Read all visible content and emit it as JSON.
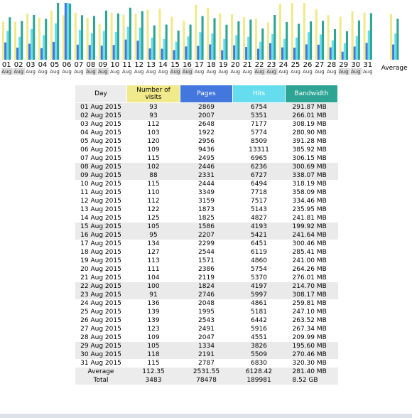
{
  "chart_data": {
    "type": "bar",
    "categories": [
      "01",
      "02",
      "03",
      "04",
      "05",
      "06",
      "07",
      "08",
      "09",
      "10",
      "11",
      "12",
      "13",
      "14",
      "15",
      "16",
      "17",
      "18",
      "19",
      "20",
      "21",
      "22",
      "23",
      "24",
      "25",
      "26",
      "27",
      "28",
      "29",
      "30",
      "31"
    ],
    "category_sublabel": "Aug",
    "weekend_days": [
      "01",
      "02",
      "08",
      "09",
      "15",
      "16",
      "22",
      "23",
      "29",
      "30"
    ],
    "average_label": "Average",
    "series": [
      {
        "name": "Number of visits",
        "values": [
          93,
          93,
          112,
          103,
          120,
          109,
          115,
          102,
          88,
          115,
          110,
          112,
          122,
          125,
          105,
          95,
          134,
          127,
          113,
          111,
          104,
          100,
          91,
          136,
          139,
          139,
          123,
          109,
          105,
          118,
          115
        ],
        "average": 112.35,
        "color": "#f0ea8c"
      },
      {
        "name": "Pages",
        "values": [
          2869,
          2007,
          2648,
          1922,
          2956,
          9436,
          2495,
          2446,
          2331,
          2444,
          3349,
          3159,
          1873,
          1825,
          1586,
          2207,
          2299,
          2544,
          1571,
          2386,
          2119,
          1824,
          2746,
          2048,
          1995,
          2543,
          2491,
          2047,
          1334,
          2191,
          2787
        ],
        "average": 2531.55,
        "color": "#4477dd"
      },
      {
        "name": "Hits",
        "values": [
          6754,
          5351,
          7177,
          5774,
          8509,
          13311,
          6965,
          6236,
          6727,
          6494,
          7718,
          7517,
          5143,
          4827,
          4193,
          5421,
          6451,
          6119,
          4860,
          5754,
          5370,
          4197,
          5997,
          4861,
          5181,
          6442,
          5916,
          4551,
          3826,
          5509,
          6830
        ],
        "average": 6128.42,
        "color": "#66ddee"
      },
      {
        "name": "Bandwidth",
        "values": [
          291.87,
          266.01,
          308.19,
          280.9,
          391.28,
          385.92,
          306.15,
          300.69,
          338.07,
          318.19,
          358.09,
          334.46,
          235.95,
          241.81,
          199.92,
          241.64,
          300.46,
          285.41,
          241.0,
          264.26,
          276.01,
          214.7,
          308.17,
          259.81,
          247.1,
          263.52,
          267.34,
          209.99,
          195.6,
          270.46,
          320.3
        ],
        "average": 281.4,
        "color": "#2ea495"
      }
    ]
  },
  "table": {
    "headers": {
      "day": "Day",
      "visits": "Number of visits",
      "pages": "Pages",
      "hits": "Hits",
      "bandwidth": "Bandwidth"
    },
    "header_colors": {
      "day": "#ececec",
      "visits": "#f0ea8c",
      "pages": "#4477dd",
      "hits": "#66ddee",
      "bandwidth": "#2ea495"
    },
    "rows": [
      {
        "day": "01 Aug 2015",
        "visits": "93",
        "pages": "2869",
        "hits": "6754",
        "bandwidth": "291.87 MB",
        "weekend": true
      },
      {
        "day": "02 Aug 2015",
        "visits": "93",
        "pages": "2007",
        "hits": "5351",
        "bandwidth": "266.01 MB",
        "weekend": true
      },
      {
        "day": "03 Aug 2015",
        "visits": "112",
        "pages": "2648",
        "hits": "7177",
        "bandwidth": "308.19 MB",
        "weekend": false
      },
      {
        "day": "04 Aug 2015",
        "visits": "103",
        "pages": "1922",
        "hits": "5774",
        "bandwidth": "280.90 MB",
        "weekend": false
      },
      {
        "day": "05 Aug 2015",
        "visits": "120",
        "pages": "2956",
        "hits": "8509",
        "bandwidth": "391.28 MB",
        "weekend": false
      },
      {
        "day": "06 Aug 2015",
        "visits": "109",
        "pages": "9436",
        "hits": "13311",
        "bandwidth": "385.92 MB",
        "weekend": false
      },
      {
        "day": "07 Aug 2015",
        "visits": "115",
        "pages": "2495",
        "hits": "6965",
        "bandwidth": "306.15 MB",
        "weekend": false
      },
      {
        "day": "08 Aug 2015",
        "visits": "102",
        "pages": "2446",
        "hits": "6236",
        "bandwidth": "300.69 MB",
        "weekend": true
      },
      {
        "day": "09 Aug 2015",
        "visits": "88",
        "pages": "2331",
        "hits": "6727",
        "bandwidth": "338.07 MB",
        "weekend": true
      },
      {
        "day": "10 Aug 2015",
        "visits": "115",
        "pages": "2444",
        "hits": "6494",
        "bandwidth": "318.19 MB",
        "weekend": false
      },
      {
        "day": "11 Aug 2015",
        "visits": "110",
        "pages": "3349",
        "hits": "7718",
        "bandwidth": "358.09 MB",
        "weekend": false
      },
      {
        "day": "12 Aug 2015",
        "visits": "112",
        "pages": "3159",
        "hits": "7517",
        "bandwidth": "334.46 MB",
        "weekend": false
      },
      {
        "day": "13 Aug 2015",
        "visits": "122",
        "pages": "1873",
        "hits": "5143",
        "bandwidth": "235.95 MB",
        "weekend": false
      },
      {
        "day": "14 Aug 2015",
        "visits": "125",
        "pages": "1825",
        "hits": "4827",
        "bandwidth": "241.81 MB",
        "weekend": false
      },
      {
        "day": "15 Aug 2015",
        "visits": "105",
        "pages": "1586",
        "hits": "4193",
        "bandwidth": "199.92 MB",
        "weekend": true
      },
      {
        "day": "16 Aug 2015",
        "visits": "95",
        "pages": "2207",
        "hits": "5421",
        "bandwidth": "241.64 MB",
        "weekend": true
      },
      {
        "day": "17 Aug 2015",
        "visits": "134",
        "pages": "2299",
        "hits": "6451",
        "bandwidth": "300.46 MB",
        "weekend": false
      },
      {
        "day": "18 Aug 2015",
        "visits": "127",
        "pages": "2544",
        "hits": "6119",
        "bandwidth": "285.41 MB",
        "weekend": false
      },
      {
        "day": "19 Aug 2015",
        "visits": "113",
        "pages": "1571",
        "hits": "4860",
        "bandwidth": "241.00 MB",
        "weekend": false
      },
      {
        "day": "20 Aug 2015",
        "visits": "111",
        "pages": "2386",
        "hits": "5754",
        "bandwidth": "264.26 MB",
        "weekend": false
      },
      {
        "day": "21 Aug 2015",
        "visits": "104",
        "pages": "2119",
        "hits": "5370",
        "bandwidth": "276.01 MB",
        "weekend": false
      },
      {
        "day": "22 Aug 2015",
        "visits": "100",
        "pages": "1824",
        "hits": "4197",
        "bandwidth": "214.70 MB",
        "weekend": true
      },
      {
        "day": "23 Aug 2015",
        "visits": "91",
        "pages": "2746",
        "hits": "5997",
        "bandwidth": "308.17 MB",
        "weekend": true
      },
      {
        "day": "24 Aug 2015",
        "visits": "136",
        "pages": "2048",
        "hits": "4861",
        "bandwidth": "259.81 MB",
        "weekend": false
      },
      {
        "day": "25 Aug 2015",
        "visits": "139",
        "pages": "1995",
        "hits": "5181",
        "bandwidth": "247.10 MB",
        "weekend": false
      },
      {
        "day": "26 Aug 2015",
        "visits": "139",
        "pages": "2543",
        "hits": "6442",
        "bandwidth": "263.52 MB",
        "weekend": false
      },
      {
        "day": "27 Aug 2015",
        "visits": "123",
        "pages": "2491",
        "hits": "5916",
        "bandwidth": "267.34 MB",
        "weekend": false
      },
      {
        "day": "28 Aug 2015",
        "visits": "109",
        "pages": "2047",
        "hits": "4551",
        "bandwidth": "209.99 MB",
        "weekend": false
      },
      {
        "day": "29 Aug 2015",
        "visits": "105",
        "pages": "1334",
        "hits": "3826",
        "bandwidth": "195.60 MB",
        "weekend": true
      },
      {
        "day": "30 Aug 2015",
        "visits": "118",
        "pages": "2191",
        "hits": "5509",
        "bandwidth": "270.46 MB",
        "weekend": true
      },
      {
        "day": "31 Aug 2015",
        "visits": "115",
        "pages": "2787",
        "hits": "6830",
        "bandwidth": "320.30 MB",
        "weekend": false
      }
    ],
    "average": {
      "label": "Average",
      "visits": "112.35",
      "pages": "2531.55",
      "hits": "6128.42",
      "bandwidth": "281.40 MB"
    },
    "total": {
      "label": "Total",
      "visits": "3483",
      "pages": "78478",
      "hits": "189981",
      "bandwidth": "8.52 GB"
    }
  }
}
